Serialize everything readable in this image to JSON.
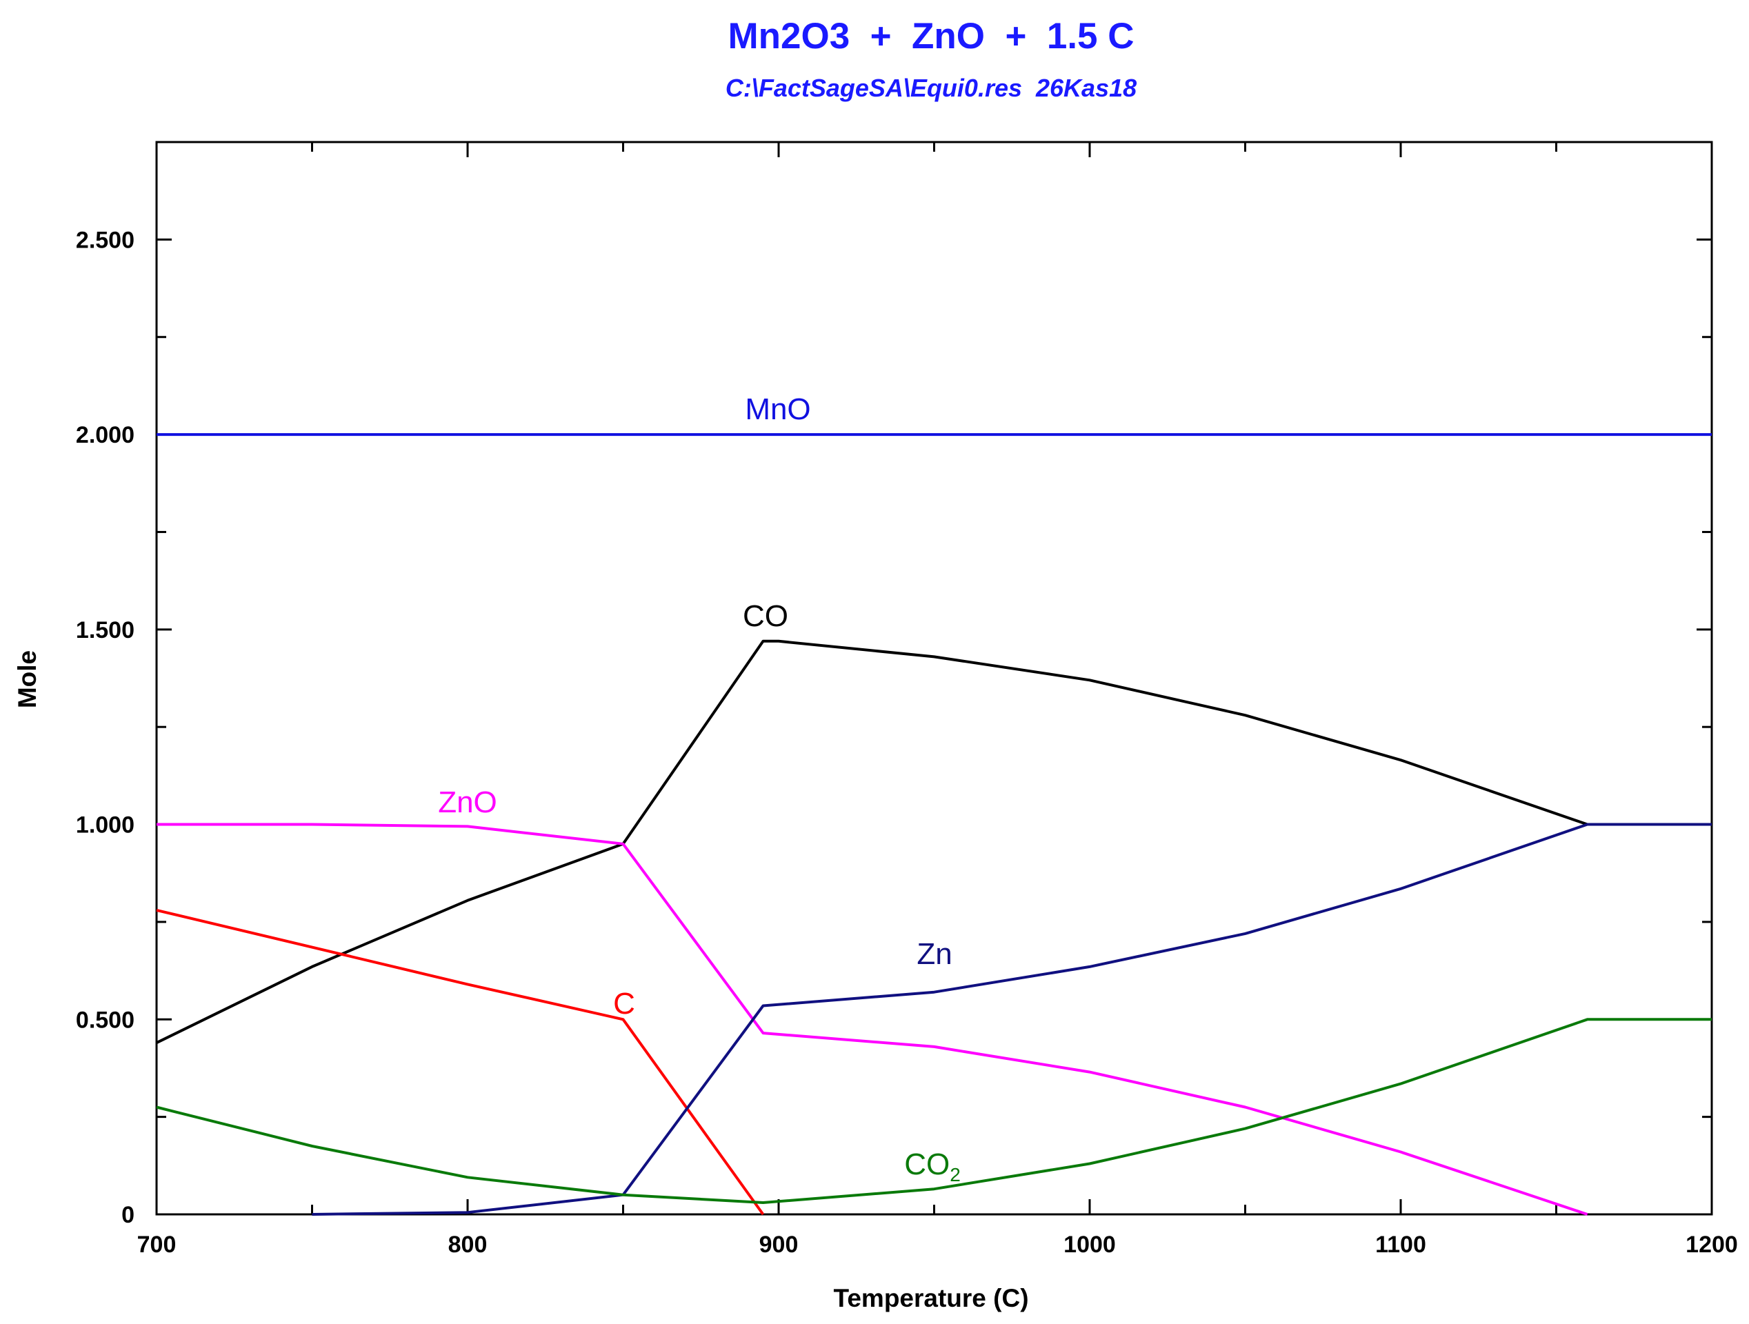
{
  "chart_data": {
    "type": "line",
    "title": "Mn2O3  +  ZnO  +  1.5 C",
    "subtitle": "C:\\FactSageSA\\Equi0.res  26Kas18",
    "xlabel": "Temperature (C)",
    "ylabel": "Mole",
    "xlim": [
      700,
      1200
    ],
    "ylim": [
      0,
      2.75
    ],
    "x_ticks": [
      700,
      800,
      900,
      1000,
      1100,
      1200
    ],
    "x_tick_labels": [
      "700",
      "800",
      "900",
      "1000",
      "1100",
      "1200"
    ],
    "y_ticks": [
      0,
      0.5,
      1.0,
      1.5,
      2.0,
      2.5
    ],
    "y_tick_labels": [
      "0",
      "0.500",
      "1.000",
      "1.500",
      "2.000",
      "2.500"
    ],
    "grid": false,
    "colors": {
      "title": "#1a1aff",
      "axis": "#000000"
    },
    "series": [
      {
        "label": "MnO",
        "color": "#1010e0",
        "points": [
          [
            700,
            2.0
          ],
          [
            1200,
            2.0
          ]
        ]
      },
      {
        "label": "CO",
        "color": "#000000",
        "points": [
          [
            700,
            0.44
          ],
          [
            750,
            0.635
          ],
          [
            800,
            0.805
          ],
          [
            850,
            0.95
          ],
          [
            895,
            1.47
          ],
          [
            900,
            1.47
          ],
          [
            950,
            1.43
          ],
          [
            1000,
            1.37
          ],
          [
            1050,
            1.28
          ],
          [
            1100,
            1.165
          ],
          [
            1160,
            1.0
          ],
          [
            1200,
            1.0
          ]
        ]
      },
      {
        "label": "ZnO",
        "color": "#ff00ff",
        "points": [
          [
            700,
            1.0
          ],
          [
            750,
            1.0
          ],
          [
            800,
            0.995
          ],
          [
            850,
            0.95
          ],
          [
            895,
            0.465
          ],
          [
            950,
            0.43
          ],
          [
            1000,
            0.365
          ],
          [
            1050,
            0.275
          ],
          [
            1100,
            0.16
          ],
          [
            1160,
            0.0
          ]
        ]
      },
      {
        "label": "C",
        "color": "#ff0000",
        "points": [
          [
            700,
            0.78
          ],
          [
            800,
            0.59
          ],
          [
            850,
            0.5
          ],
          [
            895,
            0.0
          ]
        ]
      },
      {
        "label": "Zn",
        "color": "#101080",
        "points": [
          [
            750,
            0.0
          ],
          [
            800,
            0.005
          ],
          [
            850,
            0.05
          ],
          [
            895,
            0.535
          ],
          [
            950,
            0.57
          ],
          [
            1000,
            0.635
          ],
          [
            1050,
            0.72
          ],
          [
            1100,
            0.835
          ],
          [
            1160,
            1.0
          ],
          [
            1200,
            1.0
          ]
        ]
      },
      {
        "label": "CO",
        "label_sub": "2",
        "color": "#0a7a0a",
        "points": [
          [
            700,
            0.275
          ],
          [
            750,
            0.175
          ],
          [
            800,
            0.095
          ],
          [
            850,
            0.05
          ],
          [
            895,
            0.03
          ],
          [
            950,
            0.065
          ],
          [
            1000,
            0.13
          ],
          [
            1050,
            0.22
          ],
          [
            1100,
            0.335
          ],
          [
            1160,
            0.5
          ],
          [
            1200,
            0.5
          ]
        ]
      }
    ]
  }
}
